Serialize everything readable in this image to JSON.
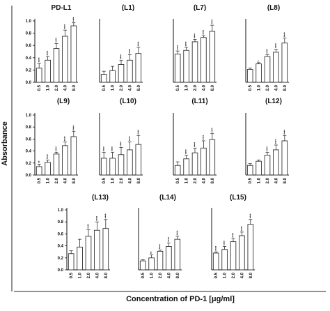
{
  "figure": {
    "y_axis_label": "Absorbance",
    "x_axis_label": "Concentration of PD-1 [μg/ml]"
  },
  "chart_data": [
    {
      "type": "bar",
      "title": "PD-L1",
      "categories": [
        "0.5",
        "1.0",
        "2.0",
        "4.0",
        "8.0"
      ],
      "values": [
        0.23,
        0.36,
        0.55,
        0.75,
        0.92
      ],
      "errors": [
        0.08,
        0.06,
        0.08,
        0.1,
        0.05
      ],
      "significance": [
        "****",
        "****",
        "****",
        "****",
        "****"
      ],
      "ylim": [
        0,
        1.0
      ],
      "yticks": [
        "0.0",
        "0.2",
        "0.4",
        "0.6",
        "0.8",
        "1.0"
      ],
      "show_y_ticks": true
    },
    {
      "type": "bar",
      "title": "(L1)",
      "categories": [
        "0.5",
        "1.0",
        "2.0",
        "4.0",
        "8.0"
      ],
      "values": [
        0.13,
        0.19,
        0.29,
        0.36,
        0.47
      ],
      "errors": [
        0.05,
        0.07,
        0.07,
        0.09,
        0.1
      ],
      "significance": [
        "",
        "",
        "****",
        "****",
        "****"
      ],
      "ylim": [
        0,
        1.0
      ],
      "show_y_ticks": false
    },
    {
      "type": "bar",
      "title": "(L7)",
      "categories": [
        "0.5",
        "1.0",
        "2.0",
        "4.0",
        "8.0"
      ],
      "values": [
        0.46,
        0.52,
        0.66,
        0.73,
        0.83
      ],
      "errors": [
        0.05,
        0.05,
        0.04,
        0.03,
        0.1
      ],
      "significance": [
        "****",
        "****",
        "****",
        "****",
        "****"
      ],
      "ylim": [
        0,
        1.0
      ],
      "show_y_ticks": false
    },
    {
      "type": "bar",
      "title": "(L8)",
      "categories": [
        "0.5",
        "1.0",
        "2.0",
        "4.0",
        "8.0"
      ],
      "values": [
        0.21,
        0.3,
        0.42,
        0.49,
        0.64
      ],
      "errors": [
        0.02,
        0.02,
        0.03,
        0.05,
        0.08
      ],
      "significance": [
        "",
        "*",
        "****",
        "****",
        "****"
      ],
      "ylim": [
        0,
        1.0
      ],
      "show_y_ticks": false
    },
    {
      "type": "bar",
      "title": "(L9)",
      "categories": [
        "0.5",
        "1.0",
        "2.0",
        "4.0",
        "8.0"
      ],
      "values": [
        0.14,
        0.21,
        0.35,
        0.49,
        0.64
      ],
      "errors": [
        0.04,
        0.04,
        0.03,
        0.06,
        0.09
      ],
      "significance": [
        "**",
        "****",
        "****",
        "****",
        "****"
      ],
      "ylim": [
        0,
        1.0
      ],
      "yticks": [
        "0.0",
        "0.2",
        "0.4",
        "0.6",
        "0.8",
        "1.0"
      ],
      "show_y_ticks": true
    },
    {
      "type": "bar",
      "title": "(L10)",
      "categories": [
        "0.5",
        "1.0",
        "2.0",
        "4.0",
        "8.0"
      ],
      "values": [
        0.28,
        0.28,
        0.34,
        0.42,
        0.51
      ],
      "errors": [
        0.1,
        0.1,
        0.12,
        0.13,
        0.15
      ],
      "significance": [
        "****",
        "****",
        "****",
        "****",
        "****"
      ],
      "ylim": [
        0,
        1.0
      ],
      "show_y_ticks": false
    },
    {
      "type": "bar",
      "title": "(L11)",
      "categories": [
        "0.5",
        "1.0",
        "2.0",
        "4.0",
        "8.0"
      ],
      "values": [
        0.16,
        0.27,
        0.37,
        0.45,
        0.59
      ],
      "errors": [
        0.06,
        0.06,
        0.08,
        0.12,
        0.1
      ],
      "significance": [
        "",
        "****",
        "****",
        "****",
        "****"
      ],
      "ylim": [
        0,
        1.0
      ],
      "show_y_ticks": false
    },
    {
      "type": "bar",
      "title": "(L12)",
      "categories": [
        "0.5",
        "1.0",
        "2.0",
        "4.0",
        "8.0"
      ],
      "values": [
        0.16,
        0.23,
        0.33,
        0.42,
        0.57
      ],
      "errors": [
        0.03,
        0.02,
        0.05,
        0.08,
        0.09
      ],
      "significance": [
        "",
        "",
        "****",
        "****",
        "****"
      ],
      "ylim": [
        0,
        1.0
      ],
      "show_y_ticks": false
    },
    {
      "type": "bar",
      "title": "(L13)",
      "categories": [
        "0.5",
        "1.0",
        "2.0",
        "4.0",
        "8.0"
      ],
      "values": [
        0.27,
        0.38,
        0.56,
        0.66,
        0.69
      ],
      "errors": [
        0.05,
        0.13,
        0.11,
        0.14,
        0.15
      ],
      "significance": [
        "",
        "",
        "****",
        "****",
        "****"
      ],
      "ylim": [
        0,
        1.0
      ],
      "yticks": [
        "0.0",
        "0.2",
        "0.4",
        "0.6",
        "0.8",
        "1.0"
      ],
      "show_y_ticks": true
    },
    {
      "type": "bar",
      "title": "(L14)",
      "categories": [
        "0.5",
        "1.0",
        "2.0",
        "4.0",
        "8.0"
      ],
      "values": [
        0.15,
        0.2,
        0.31,
        0.39,
        0.51
      ],
      "errors": [
        0.02,
        0.05,
        0.02,
        0.06,
        0.05
      ],
      "significance": [
        "",
        "**",
        "****",
        "****",
        "****"
      ],
      "ylim": [
        0,
        1.0
      ],
      "show_y_ticks": false
    },
    {
      "type": "bar",
      "title": "(L15)",
      "categories": [
        "0.5",
        "1.0",
        "2.0",
        "4.0",
        "8.0"
      ],
      "values": [
        0.28,
        0.34,
        0.47,
        0.57,
        0.76
      ],
      "errors": [
        0.02,
        0.05,
        0.05,
        0.06,
        0.08
      ],
      "significance": [
        "****",
        "****",
        "****",
        "****",
        "****"
      ],
      "ylim": [
        0,
        1.0
      ],
      "show_y_ticks": false
    }
  ]
}
